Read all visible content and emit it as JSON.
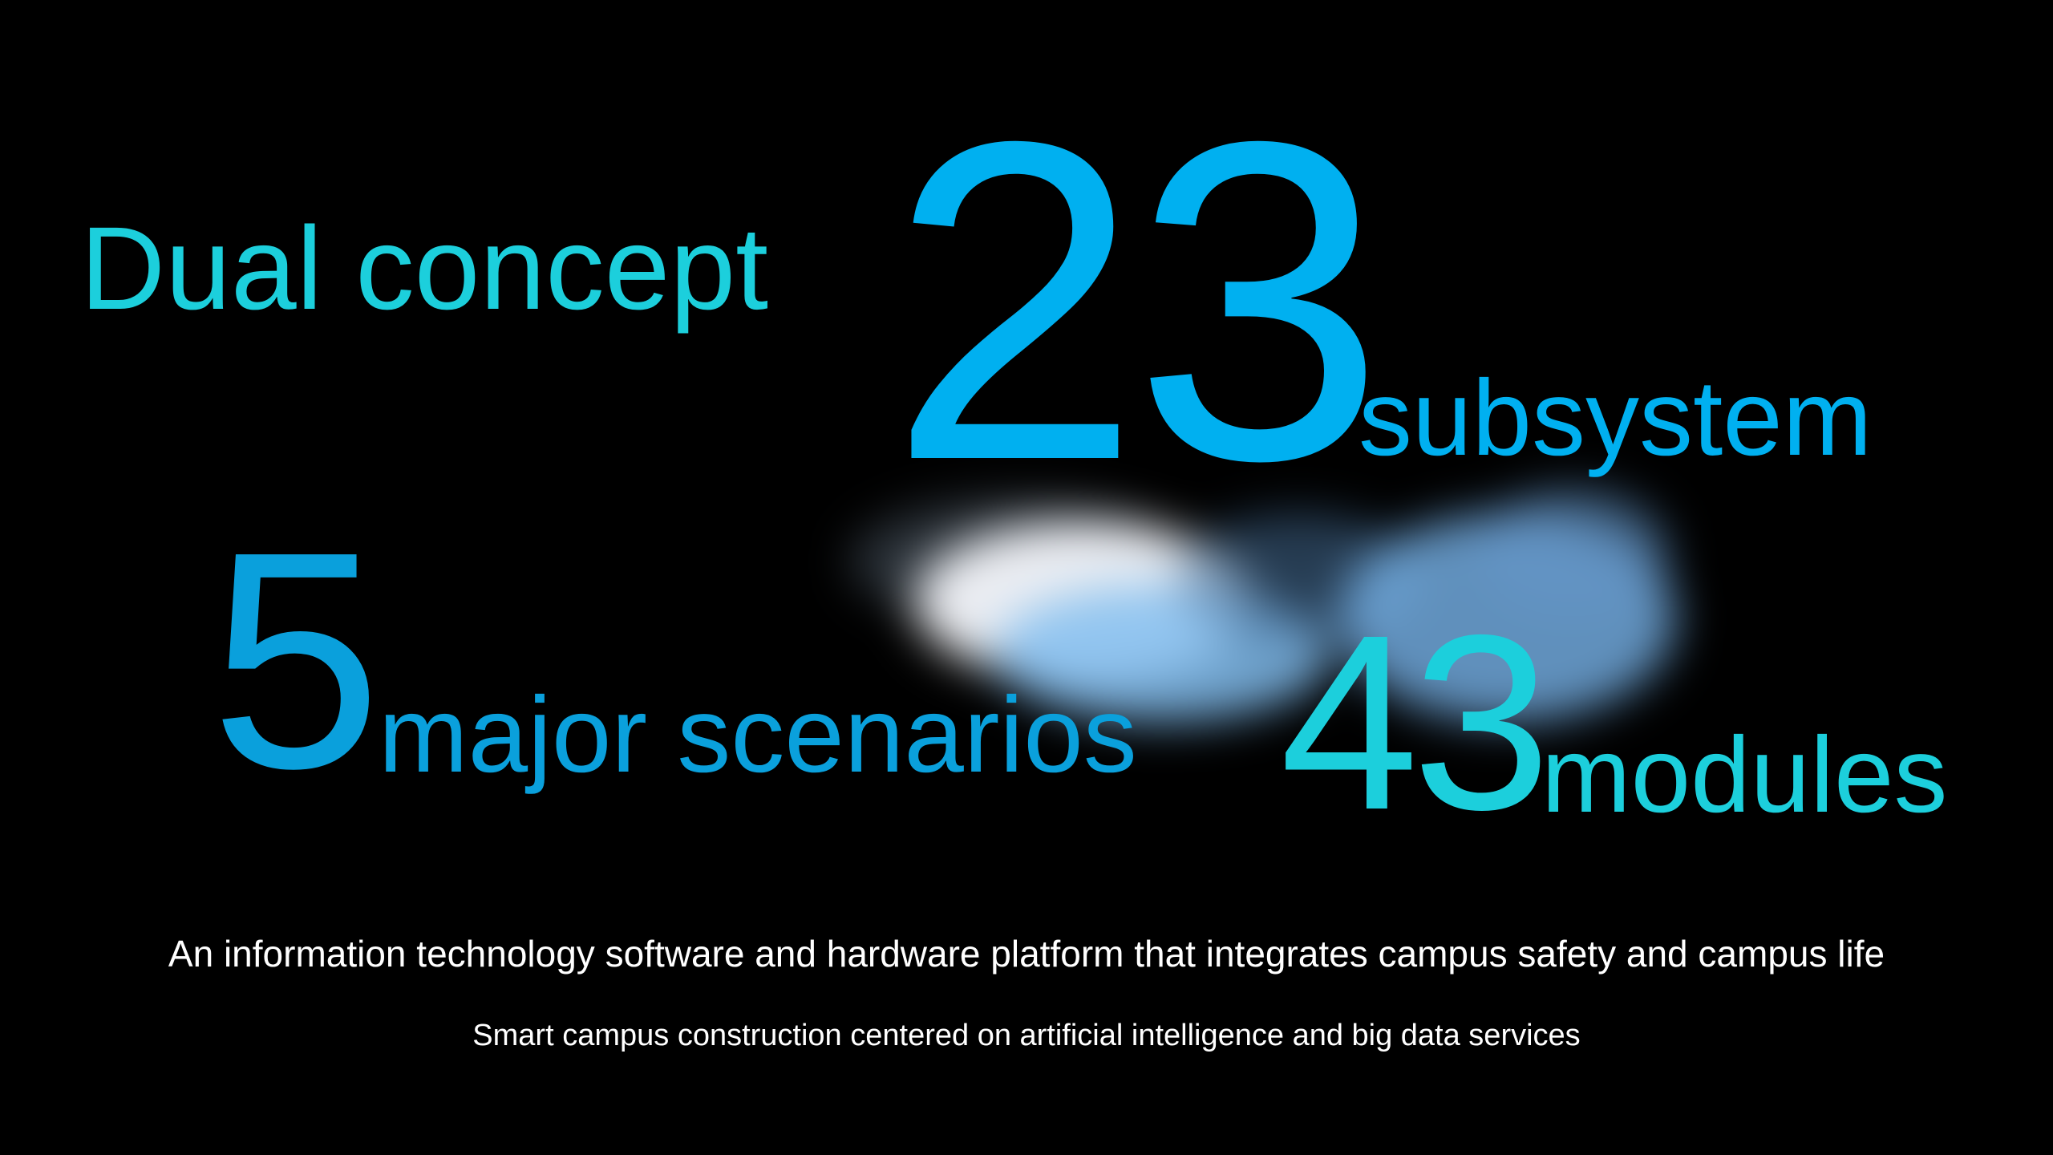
{
  "colors": {
    "teal": "#1ccfdc",
    "sky_blue": "#00b0f0",
    "mid_blue": "#0aa0dc",
    "background": "#000000",
    "caption": "#ffffff"
  },
  "headline": {
    "concept": "Dual concept"
  },
  "stats": [
    {
      "number": "23",
      "label": "subsystem"
    },
    {
      "number": "5",
      "label": "major scenarios"
    },
    {
      "number": "43",
      "label": "modules"
    }
  ],
  "captions": {
    "line1": "An information technology software and hardware platform that integrates campus safety and campus life",
    "line2": "Smart campus construction centered on artificial intelligence and big data services"
  }
}
